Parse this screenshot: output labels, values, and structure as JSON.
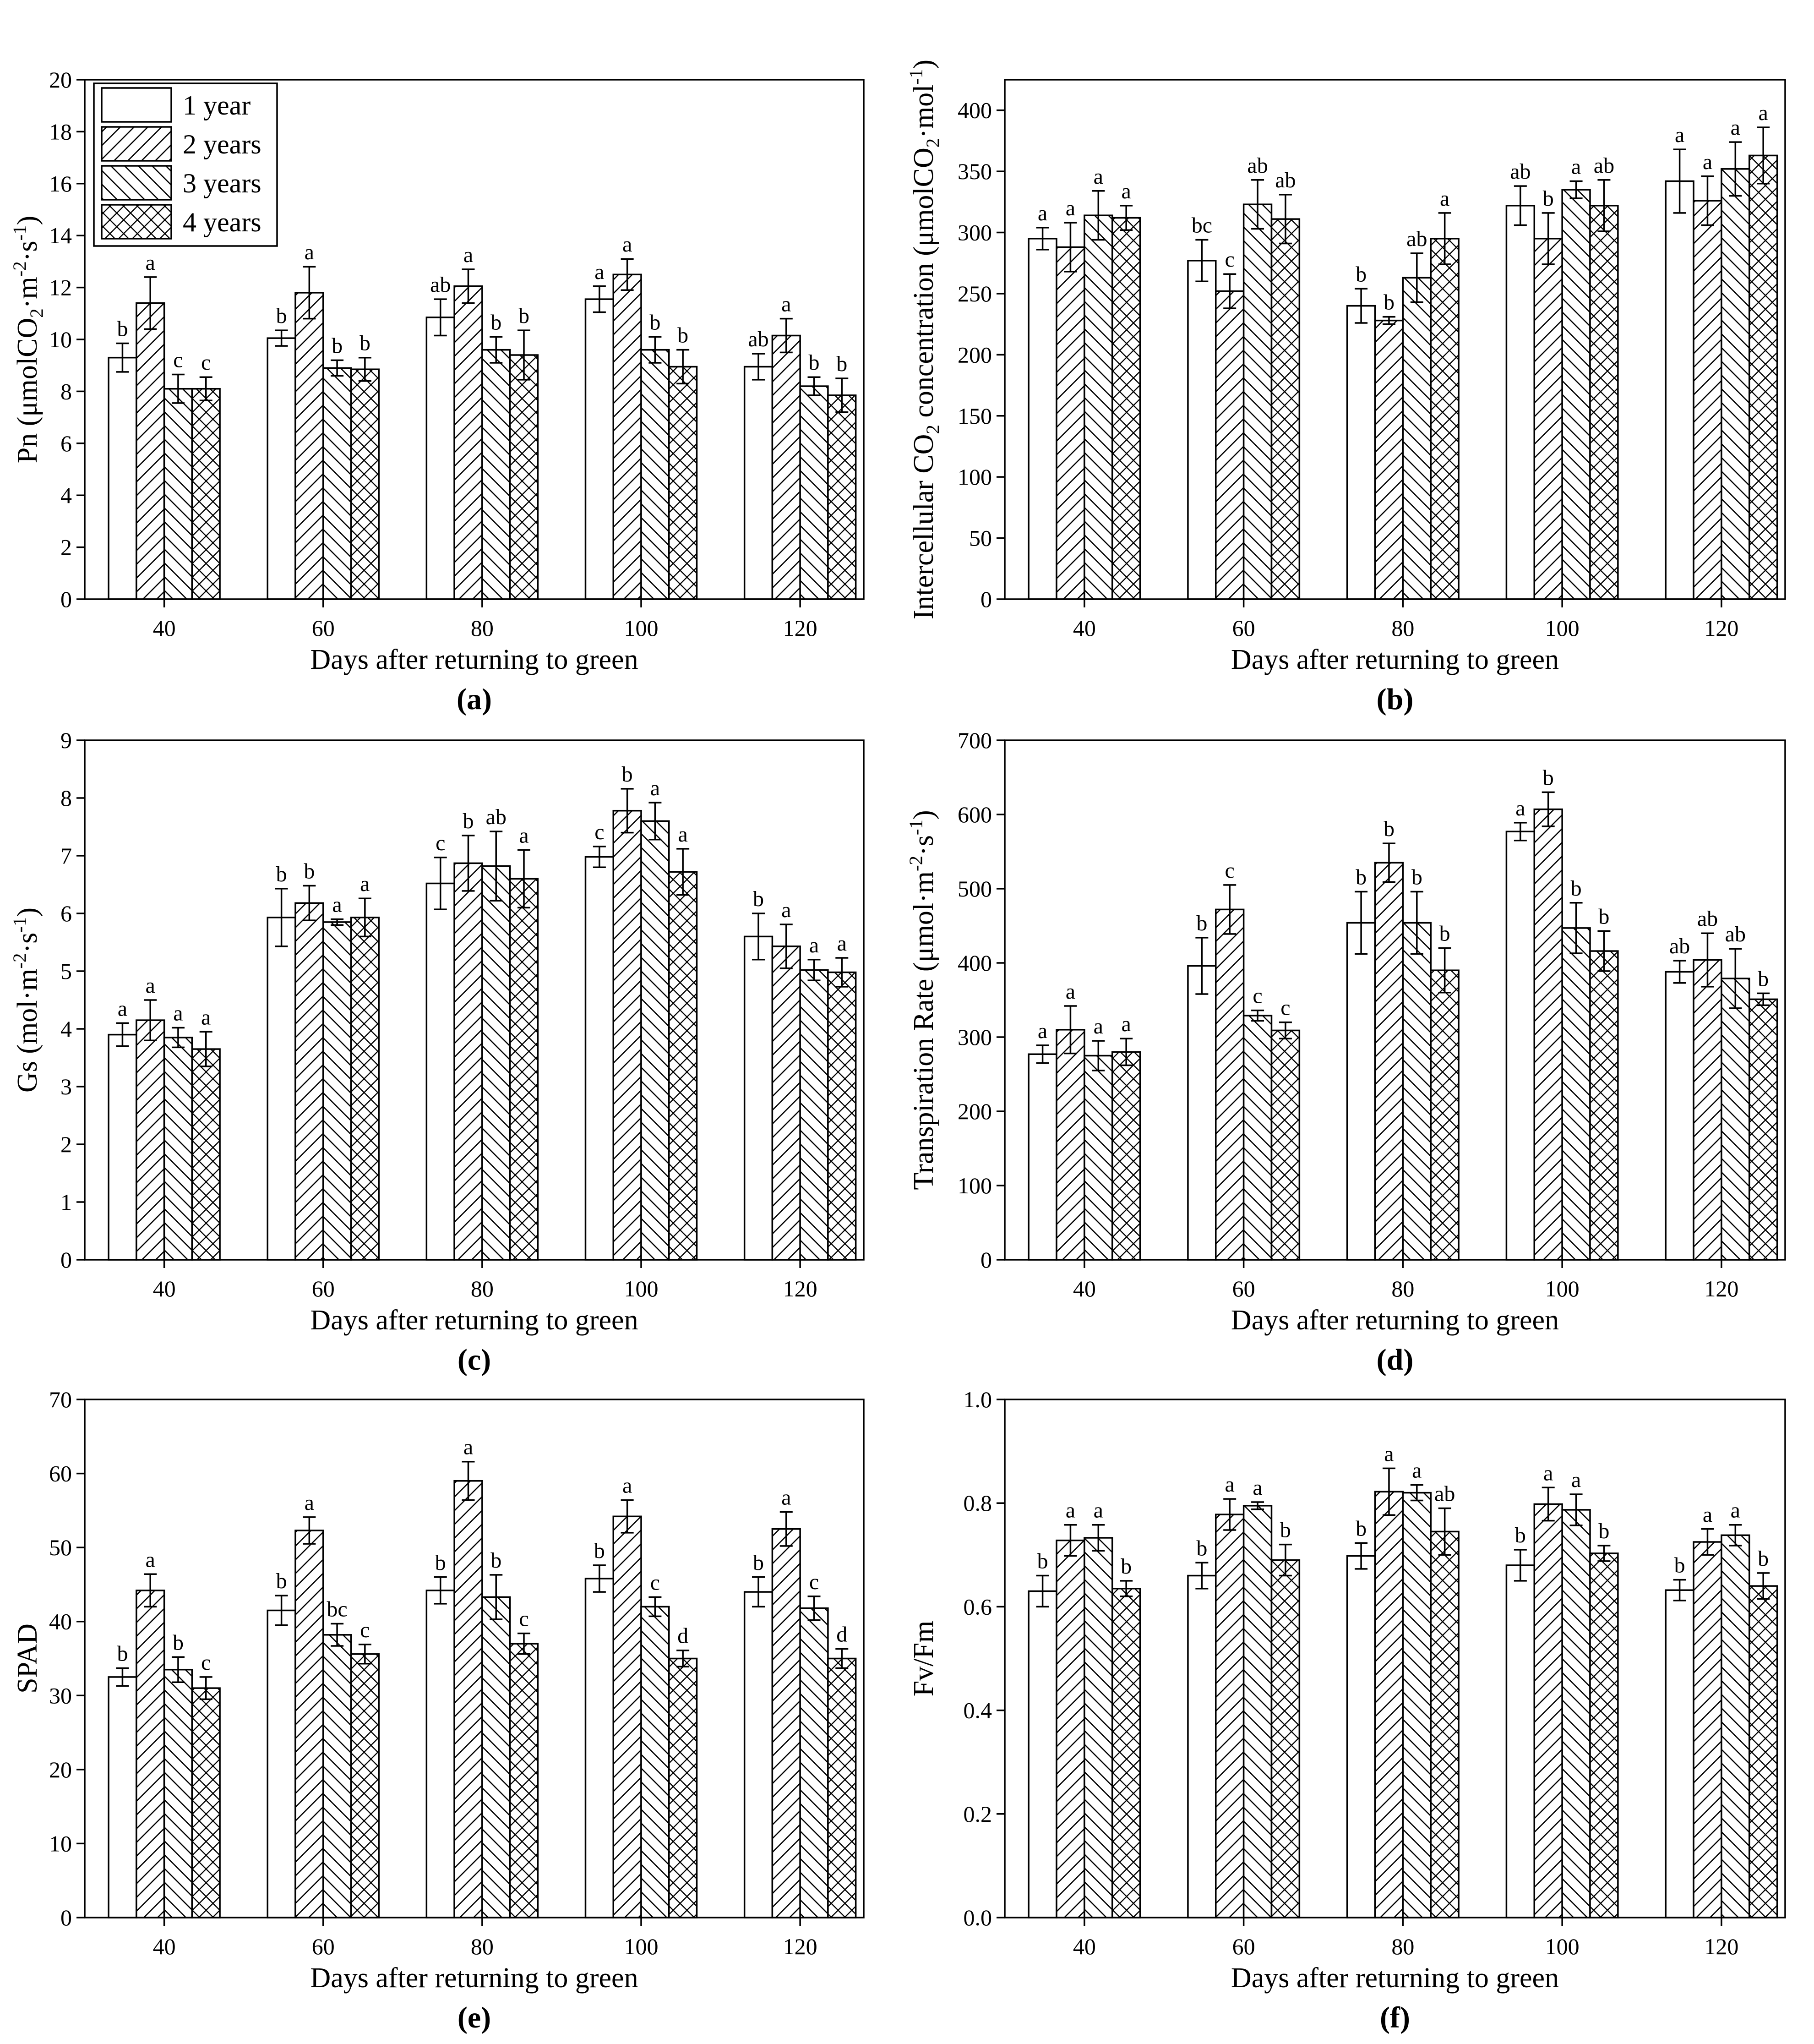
{
  "chart_data": [
    {
      "type": "bar",
      "panel_label": "(a)",
      "xlabel": "Days after returning to green",
      "ylabel": [
        {
          "t": "Pn (μmolCO"
        },
        {
          "t": "2",
          "sub": true
        },
        {
          "t": "·m"
        },
        {
          "t": "-2",
          "sup": true
        },
        {
          "t": "·s"
        },
        {
          "t": "-1",
          "sup": true
        },
        {
          "t": ")"
        }
      ],
      "categories": [
        "40",
        "60",
        "80",
        "100",
        "120"
      ],
      "xlim": [
        30,
        128
      ],
      "ylim": [
        0,
        20
      ],
      "yticks": [
        "0",
        "2",
        "4",
        "6",
        "8",
        "10",
        "12",
        "14",
        "16",
        "18",
        "20"
      ],
      "legend_position": "top-left",
      "series": [
        {
          "name": "1 year",
          "values": [
            9.3,
            10.05,
            10.85,
            11.55,
            8.95
          ],
          "errors": [
            0.55,
            0.3,
            0.7,
            0.5,
            0.5
          ],
          "letters": [
            "b",
            "b",
            "ab",
            "a",
            "ab"
          ]
        },
        {
          "name": "2 years",
          "values": [
            11.4,
            11.8,
            12.05,
            12.5,
            10.15
          ],
          "errors": [
            1.0,
            1.0,
            0.65,
            0.6,
            0.65
          ],
          "letters": [
            "a",
            "a",
            "a",
            "a",
            "a"
          ]
        },
        {
          "name": "3 years",
          "values": [
            8.1,
            8.9,
            9.6,
            9.6,
            8.2
          ],
          "errors": [
            0.55,
            0.3,
            0.5,
            0.5,
            0.35
          ],
          "letters": [
            "c",
            "b",
            "b",
            "b",
            "b"
          ]
        },
        {
          "name": "4 years",
          "values": [
            8.1,
            8.85,
            9.4,
            8.95,
            7.85
          ],
          "errors": [
            0.45,
            0.45,
            0.95,
            0.65,
            0.65
          ],
          "letters": [
            "c",
            "b",
            "b",
            "b",
            "b"
          ]
        }
      ]
    },
    {
      "type": "bar",
      "panel_label": "(b)",
      "xlabel": "Days after returning to green",
      "ylabel": [
        {
          "t": "Intercellular CO"
        },
        {
          "t": "2",
          "sub": true
        },
        {
          "t": " concentration (μmolCO"
        },
        {
          "t": "2",
          "sub": true
        },
        {
          "t": "·mol"
        },
        {
          "t": "-1",
          "sup": true
        },
        {
          "t": ")"
        }
      ],
      "categories": [
        "40",
        "60",
        "80",
        "100",
        "120"
      ],
      "xlim": [
        30,
        128
      ],
      "ylim": [
        0,
        425
      ],
      "yticks": [
        "0",
        "50",
        "100",
        "150",
        "200",
        "250",
        "300",
        "350",
        "400"
      ],
      "series": [
        {
          "values": [
            295,
            277,
            240,
            322,
            342
          ],
          "errors": [
            9,
            17,
            14,
            16,
            26
          ],
          "letters": [
            "a",
            "bc",
            "b",
            "ab",
            "a"
          ]
        },
        {
          "values": [
            288,
            252,
            228,
            295,
            326
          ],
          "errors": [
            20,
            14,
            3,
            21,
            20
          ],
          "letters": [
            "a",
            "c",
            "b",
            "b",
            "a"
          ]
        },
        {
          "values": [
            314,
            323,
            263,
            335,
            352
          ],
          "errors": [
            20,
            20,
            20,
            7,
            22
          ],
          "letters": [
            "a",
            "ab",
            "ab",
            "a",
            "a"
          ]
        },
        {
          "values": [
            312,
            311,
            295,
            322,
            363
          ],
          "errors": [
            10,
            20,
            21,
            21,
            23
          ],
          "letters": [
            "a",
            "ab",
            "a",
            "ab",
            "a"
          ]
        }
      ]
    },
    {
      "type": "bar",
      "panel_label": "(c)",
      "xlabel": "Days after returning to green",
      "ylabel": [
        {
          "t": "Gs (mol·m"
        },
        {
          "t": "-2",
          "sup": true
        },
        {
          "t": "·s"
        },
        {
          "t": "-1",
          "sup": true
        },
        {
          "t": ")"
        }
      ],
      "categories": [
        "40",
        "60",
        "80",
        "100",
        "120"
      ],
      "xlim": [
        30,
        128
      ],
      "ylim": [
        0,
        9
      ],
      "yticks": [
        "0",
        "1",
        "2",
        "3",
        "4",
        "5",
        "6",
        "7",
        "8",
        "9"
      ],
      "series": [
        {
          "values": [
            3.9,
            5.93,
            6.52,
            6.98,
            5.6
          ],
          "errors": [
            0.2,
            0.5,
            0.45,
            0.18,
            0.4
          ],
          "letters": [
            "a",
            "b",
            "c",
            "c",
            "b"
          ]
        },
        {
          "values": [
            4.15,
            6.18,
            6.87,
            7.78,
            5.43
          ],
          "errors": [
            0.35,
            0.3,
            0.48,
            0.38,
            0.38
          ],
          "letters": [
            "a",
            "b",
            "b",
            "b",
            "a"
          ]
        },
        {
          "values": [
            3.85,
            5.85,
            6.82,
            7.6,
            5.02
          ],
          "errors": [
            0.17,
            0.05,
            0.6,
            0.32,
            0.18
          ],
          "letters": [
            "a",
            "a",
            "ab",
            "a",
            "a"
          ]
        },
        {
          "values": [
            3.65,
            5.93,
            6.6,
            6.72,
            4.98
          ],
          "errors": [
            0.3,
            0.33,
            0.5,
            0.4,
            0.25
          ],
          "letters": [
            "a",
            "a",
            "a",
            "a",
            "a"
          ]
        }
      ]
    },
    {
      "type": "bar",
      "panel_label": "(d)",
      "xlabel": "Days after returning to green",
      "ylabel": [
        {
          "t": "Transpiration Rate (μmol·m"
        },
        {
          "t": "-2",
          "sup": true
        },
        {
          "t": "·s"
        },
        {
          "t": "-1",
          "sup": true
        },
        {
          "t": ")"
        }
      ],
      "categories": [
        "40",
        "60",
        "80",
        "100",
        "120"
      ],
      "xlim": [
        30,
        128
      ],
      "ylim": [
        0,
        700
      ],
      "yticks": [
        "0",
        "100",
        "200",
        "300",
        "400",
        "500",
        "600",
        "700"
      ],
      "series": [
        {
          "values": [
            277,
            396,
            454,
            577,
            388
          ],
          "errors": [
            12,
            38,
            42,
            12,
            15
          ],
          "letters": [
            "a",
            "b",
            "b",
            "a",
            "ab"
          ]
        },
        {
          "values": [
            310,
            472,
            535,
            607,
            404
          ],
          "errors": [
            32,
            33,
            26,
            23,
            36
          ],
          "letters": [
            "a",
            "c",
            "b",
            "b",
            "ab"
          ]
        },
        {
          "values": [
            275,
            329,
            454,
            447,
            379
          ],
          "errors": [
            20,
            7,
            42,
            34,
            40
          ],
          "letters": [
            "a",
            "c",
            "b",
            "b",
            "ab"
          ]
        },
        {
          "values": [
            280,
            309,
            390,
            416,
            351
          ],
          "errors": [
            18,
            11,
            30,
            27,
            8
          ],
          "letters": [
            "a",
            "c",
            "b",
            "b",
            "b"
          ]
        }
      ]
    },
    {
      "type": "bar",
      "panel_label": "(e)",
      "xlabel": "Days after returning to green",
      "ylabel": [
        {
          "t": "SPAD"
        }
      ],
      "categories": [
        "40",
        "60",
        "80",
        "100",
        "120"
      ],
      "xlim": [
        30,
        128
      ],
      "ylim": [
        0,
        70
      ],
      "yticks": [
        "0",
        "10",
        "20",
        "30",
        "40",
        "50",
        "60",
        "70"
      ],
      "series": [
        {
          "values": [
            32.5,
            41.5,
            44.2,
            45.8,
            44
          ],
          "errors": [
            1.2,
            2.0,
            1.8,
            1.8,
            2.0
          ],
          "letters": [
            "b",
            "b",
            "b",
            "b",
            "b"
          ]
        },
        {
          "values": [
            44.2,
            52.3,
            59.0,
            54.2,
            52.5
          ],
          "errors": [
            2.2,
            1.8,
            2.6,
            2.2,
            2.3
          ],
          "letters": [
            "a",
            "a",
            "a",
            "a",
            "a"
          ]
        },
        {
          "values": [
            33.5,
            38.2,
            43.3,
            42.0,
            41.8
          ],
          "errors": [
            1.7,
            1.5,
            3.0,
            1.3,
            1.6
          ],
          "letters": [
            "b",
            "bc",
            "b",
            "c",
            "c"
          ]
        },
        {
          "values": [
            31.0,
            35.6,
            37.0,
            35.0,
            35.0
          ],
          "errors": [
            1.5,
            1.3,
            1.4,
            1.1,
            1.3
          ],
          "letters": [
            "c",
            "c",
            "c",
            "d",
            "d"
          ]
        }
      ]
    },
    {
      "type": "bar",
      "panel_label": "(f)",
      "xlabel": "Days after returning to green",
      "ylabel": [
        {
          "t": "Fv/Fm"
        }
      ],
      "categories": [
        "40",
        "60",
        "80",
        "100",
        "120"
      ],
      "xlim": [
        30,
        128
      ],
      "ylim": [
        0,
        1.0
      ],
      "yticks": [
        "0.0",
        "0.2",
        "0.4",
        "0.6",
        "0.8",
        "1.0"
      ],
      "series": [
        {
          "values": [
            0.63,
            0.66,
            0.698,
            0.68,
            0.632
          ],
          "errors": [
            0.03,
            0.025,
            0.025,
            0.03,
            0.02
          ],
          "letters": [
            "b",
            "b",
            "b",
            "b",
            "b"
          ]
        },
        {
          "values": [
            0.728,
            0.778,
            0.822,
            0.798,
            0.725
          ],
          "errors": [
            0.03,
            0.03,
            0.045,
            0.032,
            0.025
          ],
          "letters": [
            "a",
            "a",
            "a",
            "a",
            "a"
          ]
        },
        {
          "values": [
            0.733,
            0.795,
            0.82,
            0.787,
            0.738
          ],
          "errors": [
            0.025,
            0.007,
            0.015,
            0.03,
            0.02
          ],
          "letters": [
            "a",
            "a",
            "a",
            "a",
            "a"
          ]
        },
        {
          "values": [
            0.635,
            0.69,
            0.745,
            0.703,
            0.64
          ],
          "errors": [
            0.015,
            0.03,
            0.045,
            0.015,
            0.025
          ],
          "letters": [
            "b",
            "b",
            "ab",
            "b",
            "b"
          ]
        }
      ]
    }
  ]
}
